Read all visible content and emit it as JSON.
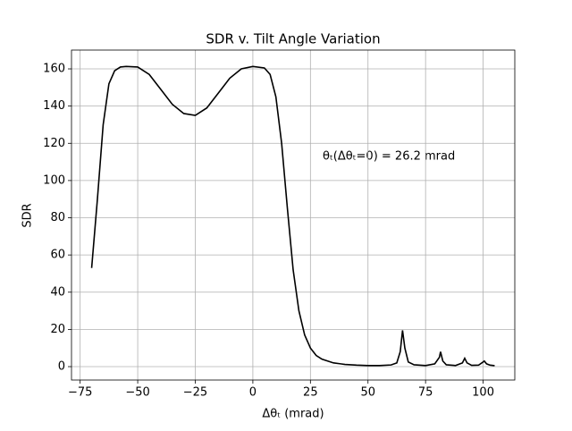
{
  "chart_data": {
    "type": "line",
    "title": "SDR v. Tilt Angle Variation",
    "xlabel": "Δθₜ (mrad)",
    "ylabel": "SDR",
    "annotation": "θₜ(Δθₜ=0) = 26.2 mrad",
    "grid": true,
    "xlim": [
      -78.75,
      113.75
    ],
    "ylim": [
      -7.2,
      170.1
    ],
    "xticks": [
      {
        "value": -75,
        "label": "−75"
      },
      {
        "value": -50,
        "label": "−50"
      },
      {
        "value": -25,
        "label": "−25"
      },
      0,
      25,
      50,
      75,
      100
    ],
    "yticks": [
      0,
      20,
      40,
      60,
      80,
      100,
      120,
      140,
      160
    ],
    "series": [
      {
        "color": "#000000",
        "x": [
          -70,
          -67.5,
          -65,
          -62.5,
          -60,
          -57.5,
          -55,
          -50,
          -45,
          -40,
          -35,
          -30,
          -25,
          -20,
          -15,
          -10,
          -5,
          0,
          5,
          7.5,
          10,
          12.5,
          15,
          17.5,
          20,
          22.5,
          25,
          27.5,
          30,
          35,
          40,
          45,
          50,
          55,
          60,
          62.5,
          64,
          65,
          66,
          67.5,
          70,
          75,
          79,
          81,
          81.5,
          82.5,
          84,
          88,
          91,
          92,
          93,
          95,
          98,
          100,
          100.5,
          101.5,
          103,
          105
        ],
        "values": [
          53,
          90,
          130,
          152,
          159,
          161,
          161.3,
          161,
          157,
          149,
          141,
          136,
          135,
          139,
          147,
          155,
          160,
          161.3,
          160.5,
          157,
          145,
          120,
          85,
          52,
          30,
          17,
          10,
          6,
          4,
          2,
          1.2,
          0.8,
          0.6,
          0.6,
          0.9,
          2,
          8,
          19.5,
          10,
          2.5,
          1,
          0.6,
          1.5,
          5,
          8,
          3,
          1,
          0.6,
          2,
          4.5,
          2,
          0.7,
          0.8,
          2.5,
          3,
          1.5,
          0.8,
          0.5
        ]
      }
    ]
  }
}
